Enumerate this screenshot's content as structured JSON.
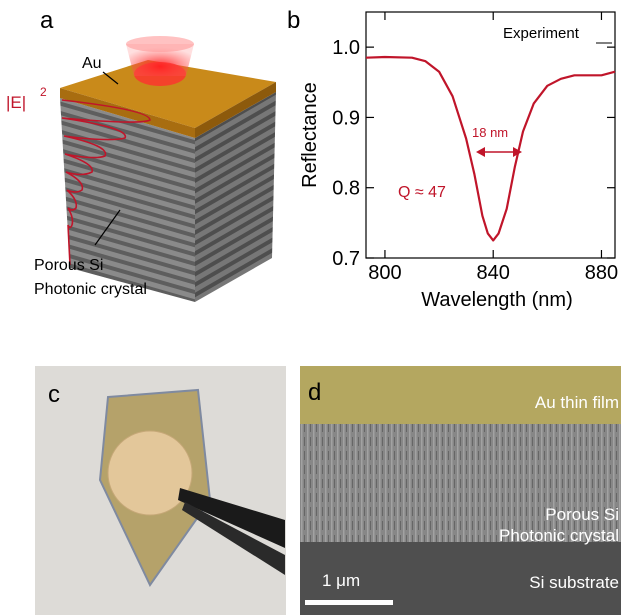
{
  "panels": {
    "a": {
      "label": "a",
      "top_layer": "Au",
      "field": "|E|",
      "field_exponent": "2",
      "material_line1": "Porous Si",
      "material_line2": "Photonic crystal"
    },
    "c": {
      "label": "c"
    },
    "d": {
      "label": "d",
      "top_layer": "Au thin film",
      "middle_line1": "Porous Si",
      "middle_line2": "Photonic crystal",
      "bottom_layer": "Si substrate",
      "scale_bar": "1 μm"
    }
  },
  "chart_data": {
    "type": "line",
    "panel_label": "b",
    "x_label": "Wavelength (nm)",
    "y_label": "Reflectance",
    "legend": "Experiment",
    "annotations": {
      "width": "18 nm",
      "q": "Q ≈ 47"
    },
    "x": [
      793,
      800,
      810,
      815,
      820,
      825,
      830,
      833,
      836,
      838,
      840,
      842,
      845,
      848,
      851,
      855,
      860,
      865,
      870,
      880,
      885
    ],
    "series": [
      {
        "name": "Experiment",
        "color": "#c0152a",
        "values": [
          0.985,
          0.986,
          0.985,
          0.98,
          0.965,
          0.93,
          0.87,
          0.82,
          0.76,
          0.735,
          0.725,
          0.735,
          0.77,
          0.83,
          0.88,
          0.92,
          0.945,
          0.955,
          0.96,
          0.96,
          0.965
        ]
      }
    ],
    "xlim": [
      793,
      885
    ],
    "xticks": [
      800,
      840,
      880
    ],
    "ylim": [
      0.7,
      1.05
    ],
    "yticks": [
      0.7,
      0.8,
      0.9,
      {
        "value": 1,
        "label": "1.0"
      }
    ]
  }
}
